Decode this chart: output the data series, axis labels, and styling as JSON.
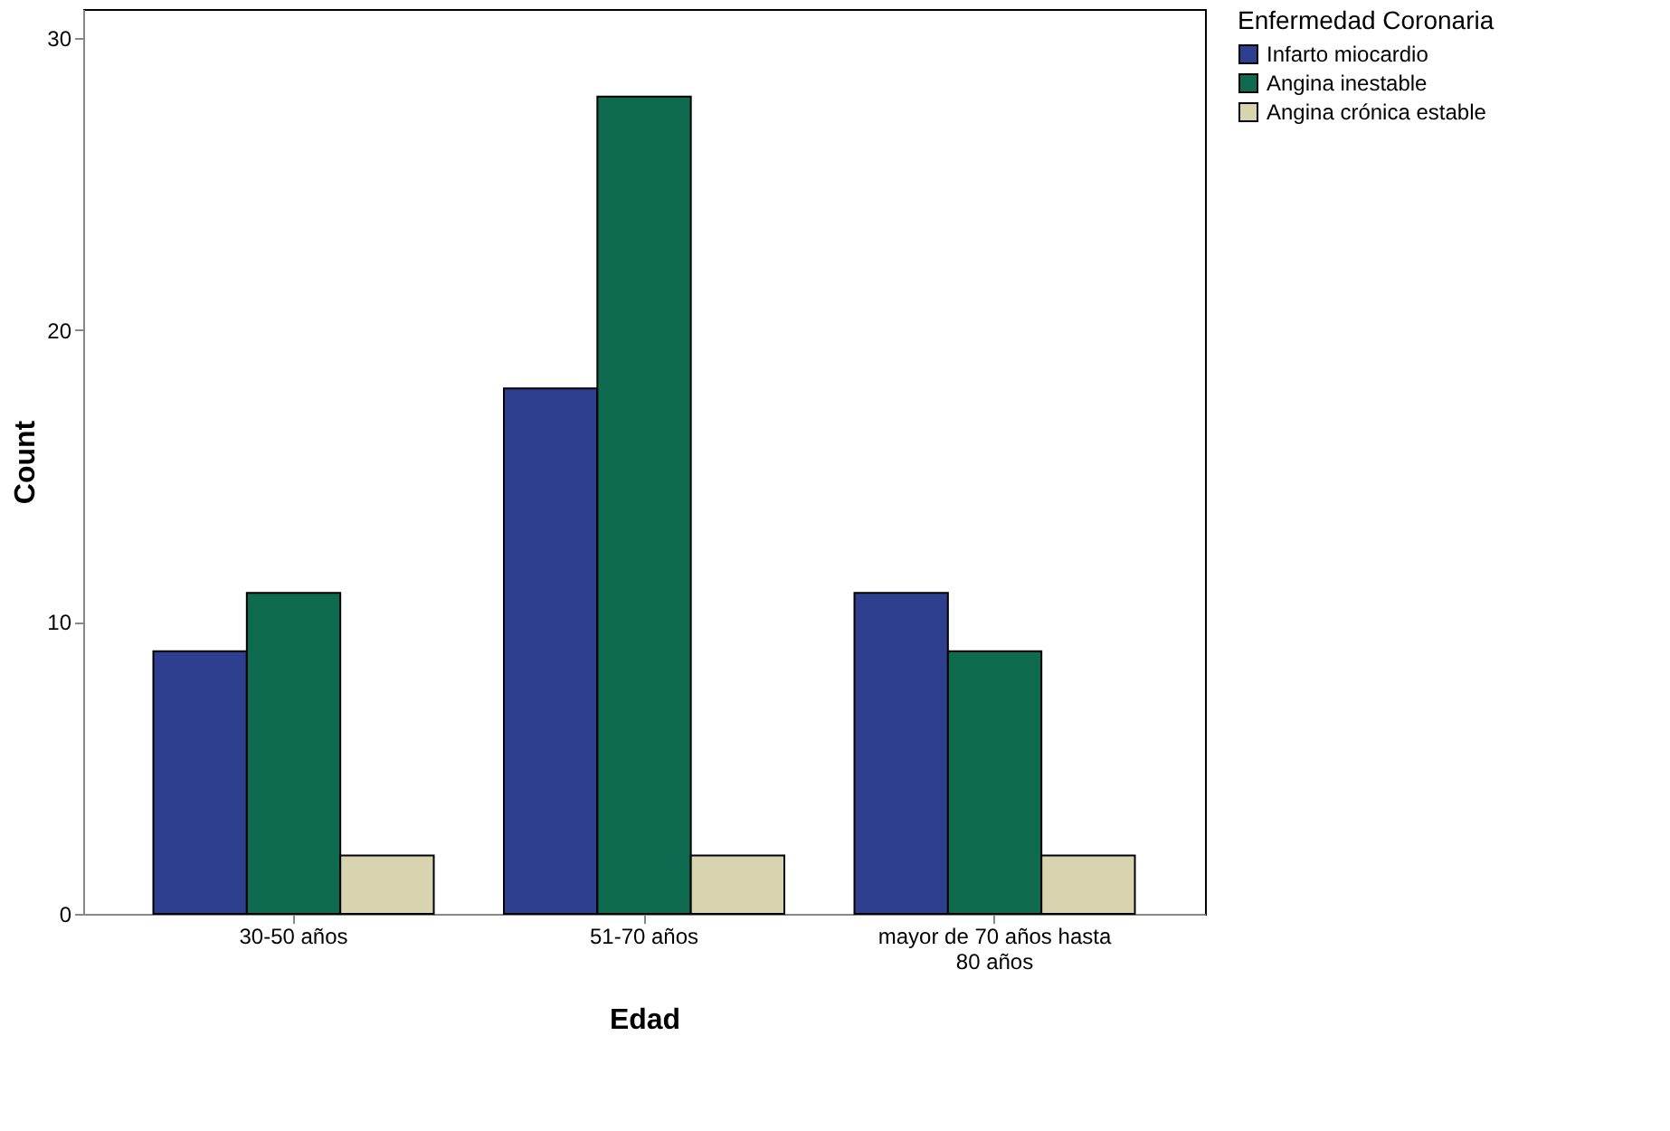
{
  "chart_data": {
    "type": "bar",
    "xlabel": "Edad",
    "ylabel": "Count",
    "legend_title": "Enfermedad Coronaria",
    "legend": "top right",
    "categories": [
      "30-50 años",
      "51-70 años",
      "mayor de 70 años hasta 80 años"
    ],
    "series": [
      {
        "name": "Infarto miocardio",
        "color": "#2e3f8f",
        "values": [
          9,
          18,
          11
        ]
      },
      {
        "name": "Angina inestable",
        "color": "#0f6b4f",
        "values": [
          11,
          28,
          9
        ]
      },
      {
        "name": "Angina crónica estable",
        "color": "#d8d4b0",
        "values": [
          2,
          2,
          2
        ]
      }
    ],
    "ylim": [
      0,
      31
    ],
    "yticks": [
      0,
      10,
      20,
      30
    ],
    "grid": false
  }
}
